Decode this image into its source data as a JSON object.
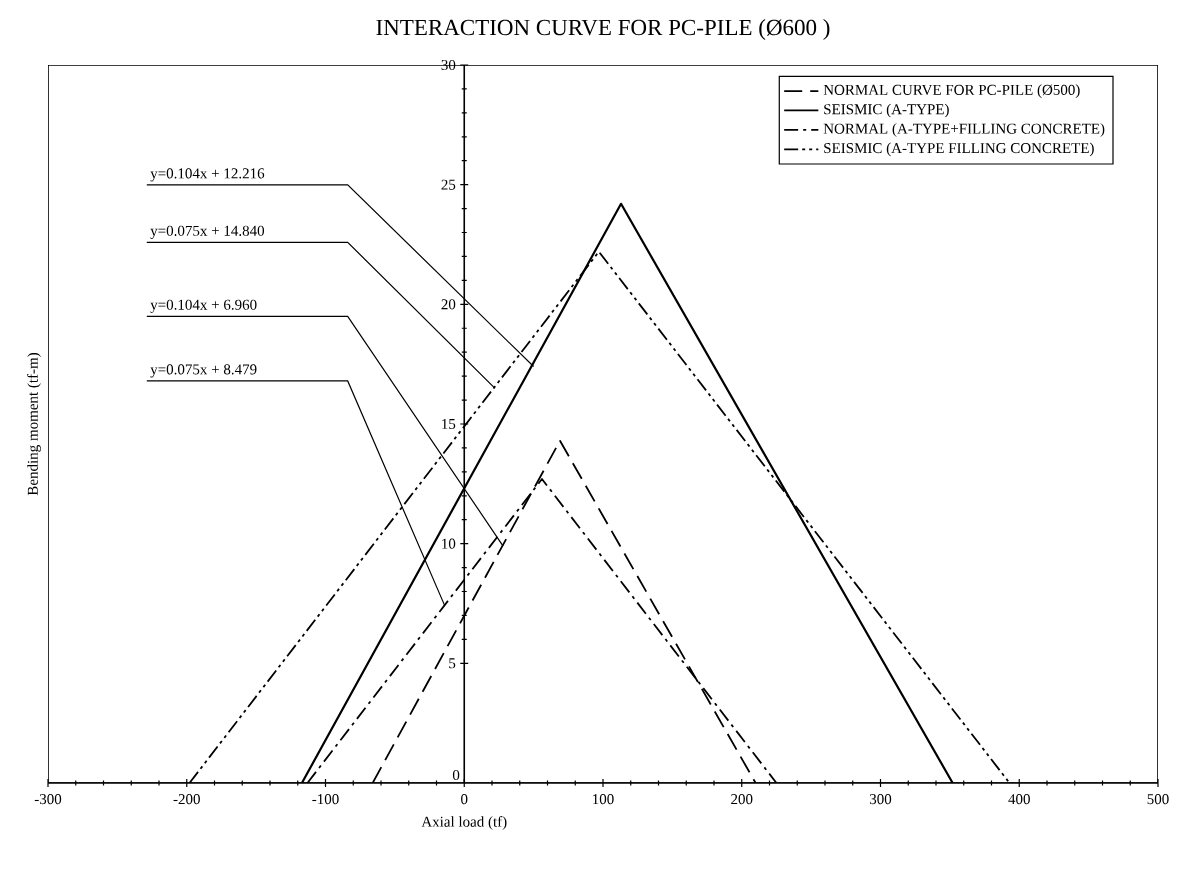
{
  "chart_data": {
    "type": "line",
    "title": "INTERACTION CURVE FOR PC-PILE (Ø600 )",
    "xlabel": "Axial load (tf)",
    "ylabel": "Bending moment (tf-m)",
    "series": [
      {
        "name": "NORMAL CURVE FOR PC-PILE (Ø500)",
        "color": "#000000",
        "line_style": "dashed",
        "x": [
          -66,
          69,
          210
        ],
        "values": [
          0,
          14.3,
          0
        ]
      },
      {
        "name": "SEISMIC (A-TYPE)",
        "color": "#000000",
        "line_style": "solid",
        "x": [
          -117,
          113,
          352
        ],
        "values": [
          0,
          24.2,
          0
        ]
      },
      {
        "name": "NORMAL (A-TYPE+FILLING CONCRETE)",
        "color": "#000000",
        "line_style": "dashdot",
        "x": [
          -113,
          56,
          225
        ],
        "values": [
          0,
          12.7,
          0
        ]
      },
      {
        "name": "SEISMIC (A-TYPE FILLING CONCRETE)",
        "color": "#000000",
        "line_style": "dashdotdot",
        "x": [
          -198,
          97,
          393
        ],
        "values": [
          0,
          22.2,
          0
        ]
      }
    ],
    "annotations": [
      {
        "text": "y=0.104x + 12.216",
        "x": 50,
        "y": 17.4
      },
      {
        "text": "y=0.075x + 14.840",
        "x": 22,
        "y": 16.5
      },
      {
        "text": "y=0.104x + 6.960",
        "x": 28,
        "y": 9.9
      },
      {
        "text": "y=0.075x + 8.479",
        "x": -14,
        "y": 7.4
      }
    ],
    "xlim": [
      -300,
      500
    ],
    "ylim": [
      0,
      30
    ],
    "xticks": [
      -300,
      -200,
      -100,
      0,
      100,
      200,
      300,
      400,
      500
    ],
    "yticks": [
      0,
      5,
      10,
      15,
      20,
      25,
      30
    ],
    "grid": false,
    "legend": "top right",
    "marker": "none"
  }
}
